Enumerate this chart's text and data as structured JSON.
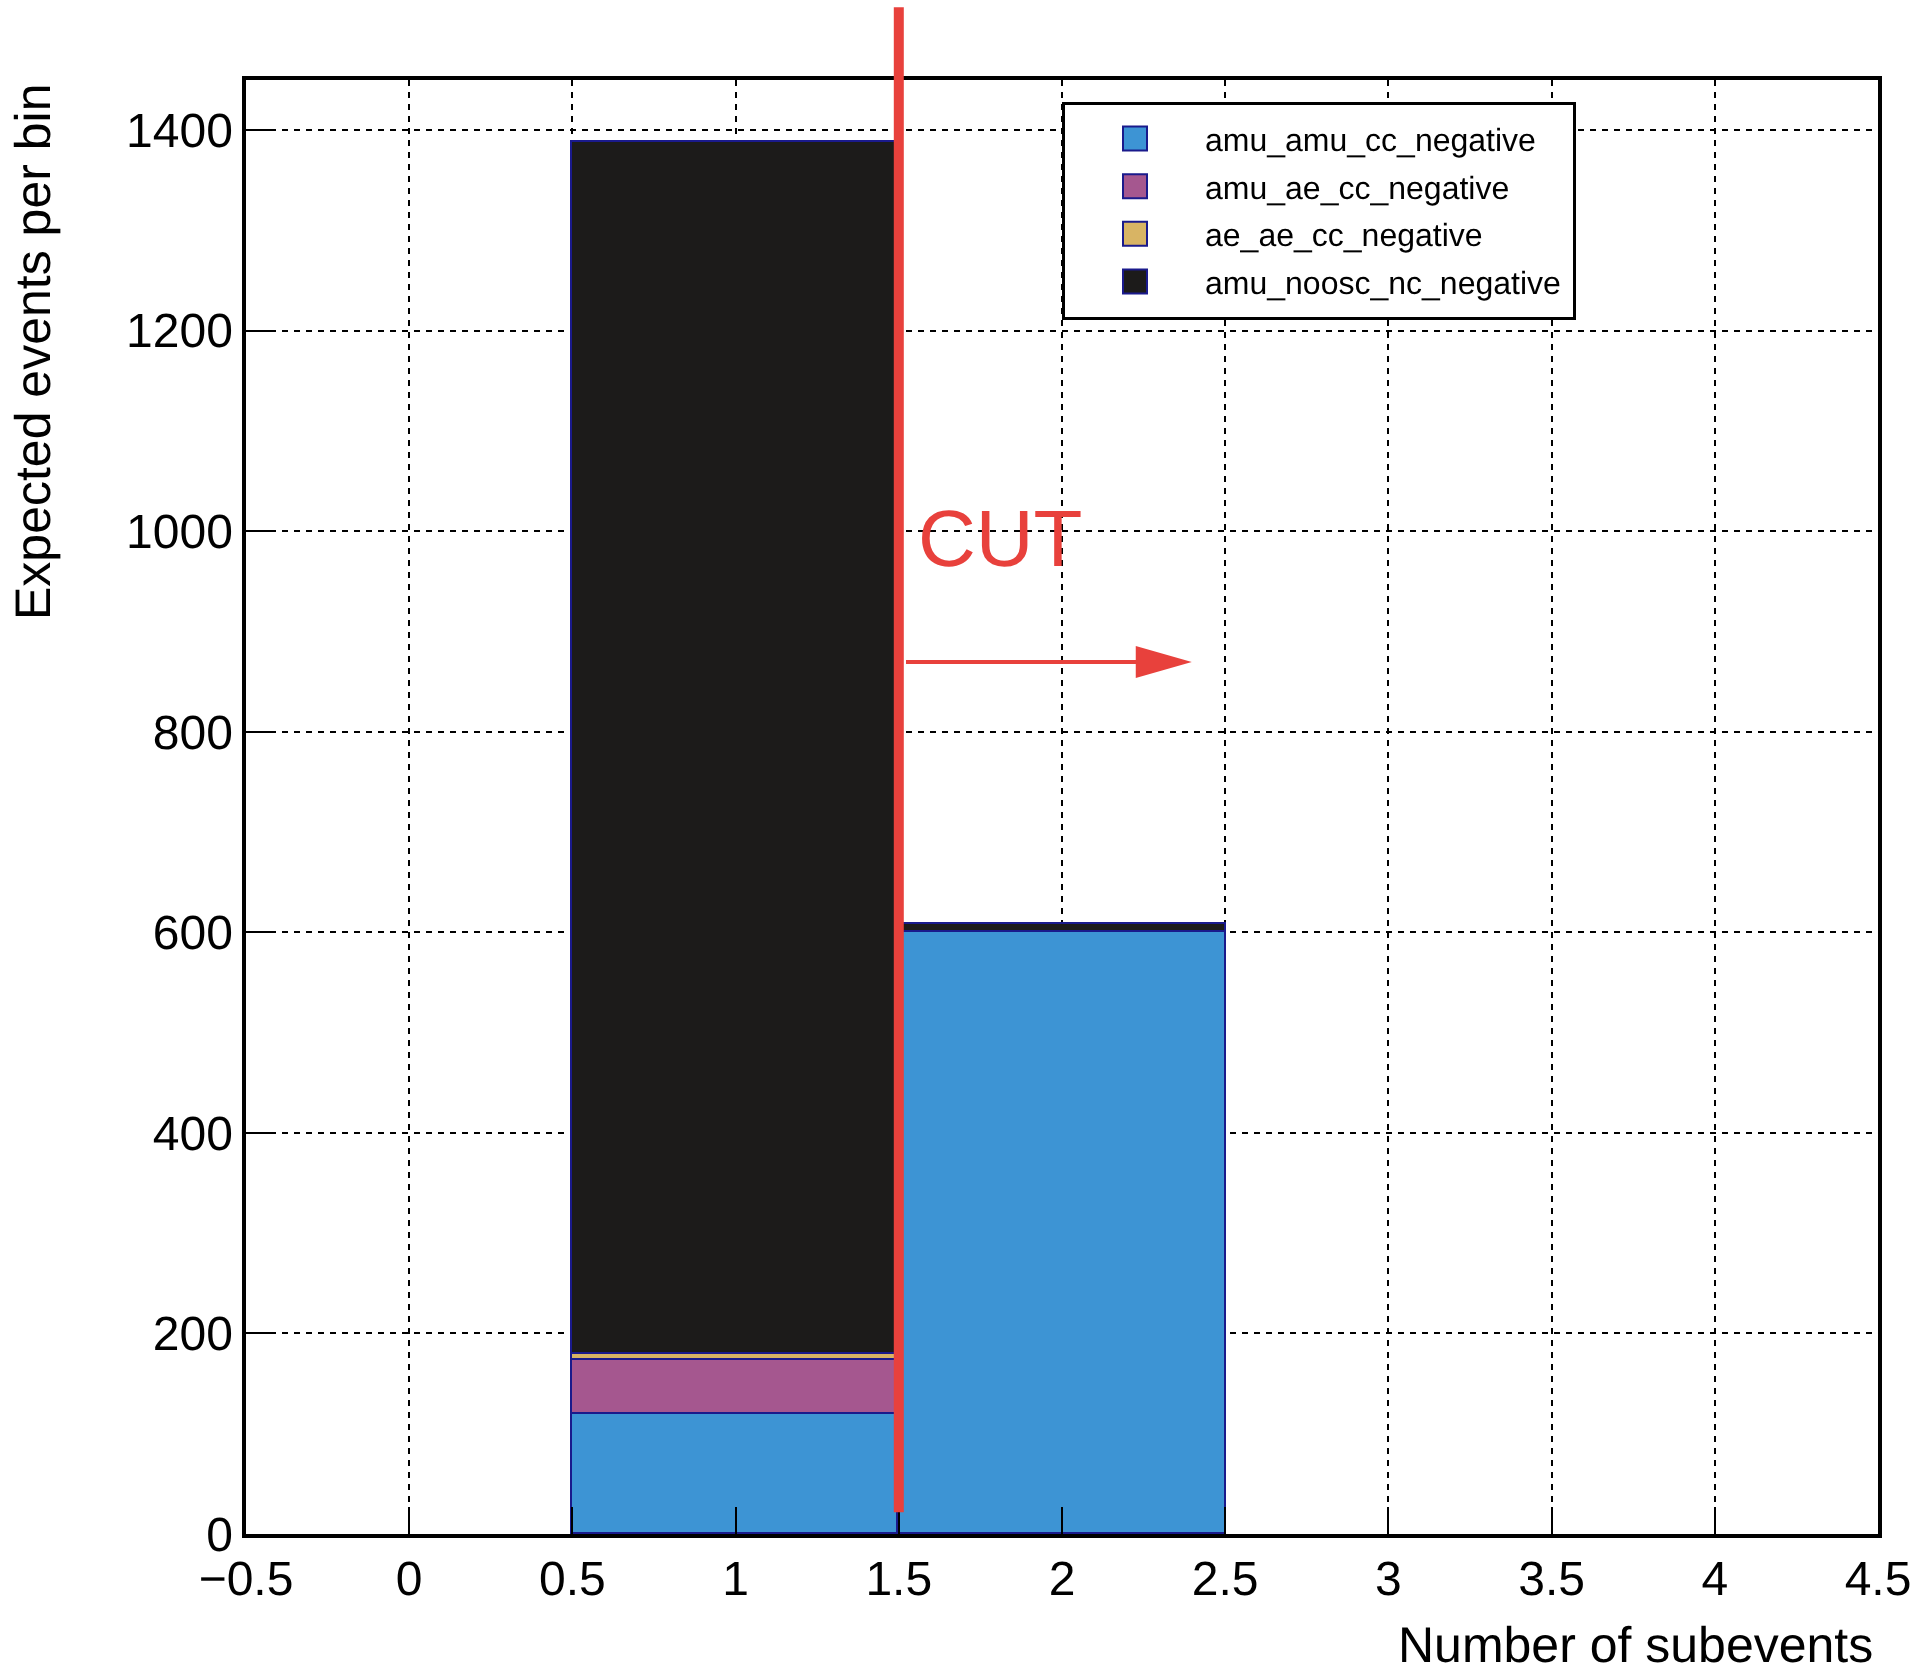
{
  "chart_data": {
    "type": "bar",
    "xlabel": "Number of subevents",
    "ylabel": "Expected events per bin",
    "x": [
      1,
      2
    ],
    "series": [
      {
        "name": "amu_amu_cc_negative",
        "color": "#3d94d4",
        "values": [
          120,
          600
        ]
      },
      {
        "name": "amu_ae_cc_negative",
        "color": "#a5578f",
        "values": [
          54,
          0
        ]
      },
      {
        "name": "ae_ae_cc_negative",
        "color": "#d8b464",
        "values": [
          6,
          0
        ]
      },
      {
        "name": "amu_noosc_nc_negative",
        "color": "#1c1b1a",
        "values": [
          1208,
          8
        ]
      }
    ],
    "stacked": true,
    "xlim": [
      -0.5,
      4.5
    ],
    "xticks": [
      -0.5,
      0,
      0.5,
      1,
      1.5,
      2,
      2.5,
      3,
      3.5,
      4,
      4.5
    ],
    "ylim": [
      0,
      1450
    ],
    "yticks": [
      0,
      200,
      400,
      600,
      800,
      1000,
      1200,
      1400
    ],
    "grid": true,
    "legend": "top right",
    "ref_lines": [
      {
        "axis": "x",
        "value": 1.5,
        "label": "CUT",
        "color": "#e8413c"
      }
    ]
  }
}
